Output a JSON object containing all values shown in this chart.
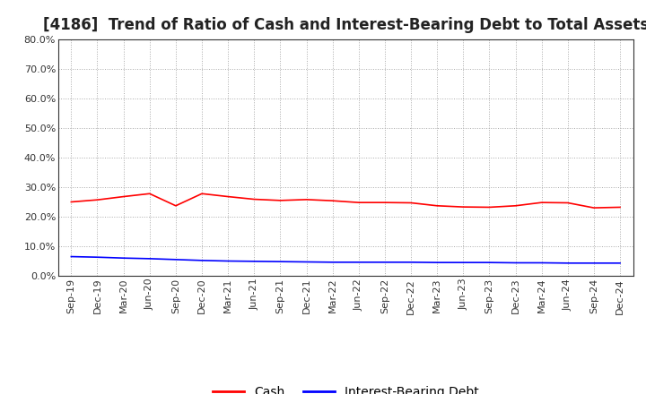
{
  "title": "[4186]  Trend of Ratio of Cash and Interest-Bearing Debt to Total Assets",
  "ylim": [
    0.0,
    0.8
  ],
  "yticks": [
    0.0,
    0.1,
    0.2,
    0.3,
    0.4,
    0.5,
    0.6,
    0.7,
    0.8
  ],
  "x_labels": [
    "Sep-19",
    "Dec-19",
    "Mar-20",
    "Jun-20",
    "Sep-20",
    "Dec-20",
    "Mar-21",
    "Jun-21",
    "Sep-21",
    "Dec-21",
    "Mar-22",
    "Jun-22",
    "Sep-22",
    "Dec-22",
    "Mar-23",
    "Jun-23",
    "Sep-23",
    "Dec-23",
    "Mar-24",
    "Jun-24",
    "Sep-24",
    "Dec-24"
  ],
  "cash": [
    0.25,
    0.257,
    0.268,
    0.278,
    0.237,
    0.278,
    0.268,
    0.259,
    0.255,
    0.258,
    0.254,
    0.248,
    0.248,
    0.247,
    0.237,
    0.233,
    0.232,
    0.237,
    0.248,
    0.247,
    0.23,
    0.232
  ],
  "debt": [
    0.065,
    0.063,
    0.06,
    0.058,
    0.055,
    0.052,
    0.05,
    0.049,
    0.048,
    0.047,
    0.046,
    0.046,
    0.046,
    0.046,
    0.045,
    0.045,
    0.045,
    0.044,
    0.044,
    0.043,
    0.043,
    0.043
  ],
  "cash_color": "#ff0000",
  "debt_color": "#0000ff",
  "background_color": "#ffffff",
  "plot_bg_color": "#ffffff",
  "grid_color": "#aaaaaa",
  "title_fontsize": 12,
  "tick_fontsize": 8,
  "legend_fontsize": 10
}
